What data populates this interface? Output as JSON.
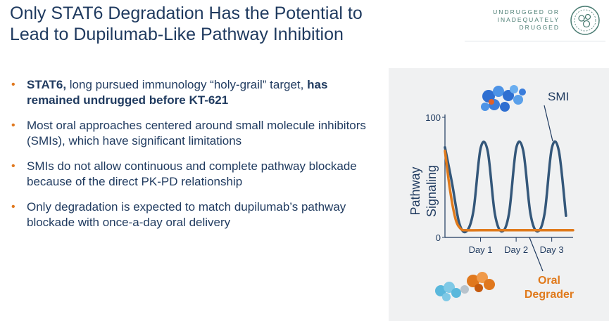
{
  "header": {
    "title_line1": "Only STAT6 Degradation Has the Potential to",
    "title_line2": "Lead to Dupilumab-Like Pathway Inhibition",
    "brand_line1": "UNDRUGGED OR",
    "brand_line2": "INADEQUATELY",
    "brand_line3": "DRUGGED",
    "brand_icon": "molecule-circle-icon"
  },
  "bullets": [
    {
      "bold1": "STAT6,",
      "text1": " long pursued immunology “holy-grail” target, ",
      "bold2": "has remained undrugged before KT-621",
      "text2": ""
    },
    {
      "bold1": "",
      "text1": "Most oral approaches centered around small molecule inhibitors (SMIs), which have significant limitations",
      "bold2": "",
      "text2": ""
    },
    {
      "bold1": "",
      "text1": "SMIs do not allow continuous and complete pathway blockade because of the direct PK-PD relationship",
      "bold2": "",
      "text2": ""
    },
    {
      "bold1": "",
      "text1": "Only degradation is expected to match dupilumab’s pathway blockade with once-a-day oral delivery",
      "bold2": "",
      "text2": ""
    }
  ],
  "colors": {
    "navy": "#1f3a5f",
    "smi_line": "#34577a",
    "degrader_line": "#e07a1c",
    "bullet": "#e0781e",
    "brand": "#4a7c72"
  },
  "chart_data": {
    "type": "line",
    "title": "",
    "ylabel_line1": "Pathway",
    "ylabel_line2": "Signaling",
    "xlabel": "",
    "yticks": [
      "100",
      "0"
    ],
    "ylim": [
      0,
      100
    ],
    "xlim": [
      0,
      3.6
    ],
    "x_tick_values": [
      1,
      2,
      3
    ],
    "categories": [
      "Day 1",
      "Day 2",
      "Day 3"
    ],
    "series": [
      {
        "name": "SMI",
        "x": [
          0,
          0.2,
          0.4,
          0.6,
          0.8,
          1.0,
          1.2,
          1.4,
          1.6,
          1.8,
          2.0,
          2.2,
          2.4,
          2.6,
          2.8,
          3.0,
          3.2,
          3.4
        ],
        "values": [
          75,
          45,
          12,
          5,
          22,
          74,
          72,
          20,
          5,
          20,
          74,
          72,
          20,
          5,
          20,
          74,
          72,
          18
        ]
      },
      {
        "name": "Oral Degrader",
        "x": [
          0,
          0.15,
          0.3,
          0.45,
          0.6,
          1.0,
          2.0,
          3.0,
          3.6
        ],
        "values": [
          72,
          38,
          15,
          7,
          6,
          6,
          6,
          6,
          6
        ]
      }
    ],
    "annotations": {
      "smi_label": "SMI",
      "degrader_label_line1": "Oral",
      "degrader_label_line2": "Degrader"
    }
  }
}
